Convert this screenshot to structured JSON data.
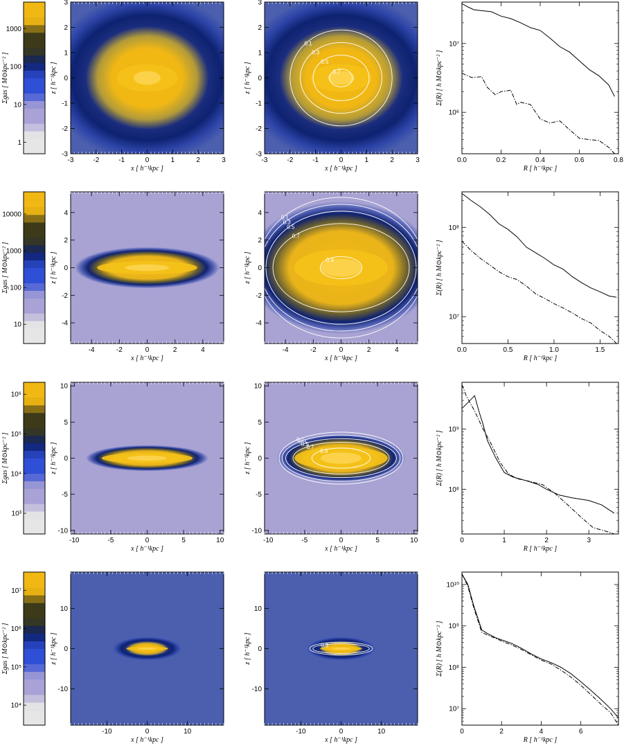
{
  "figure": {
    "colors": {
      "low": "#e6e6e6",
      "lavender": "#a9a2d6",
      "blue": "#2f4fd6",
      "navy": "#0c1f6a",
      "olive": "#3c3a19",
      "gold": "#f1b814",
      "contour": "#ffffff"
    }
  },
  "chart_data": [
    {
      "type": "colorbar",
      "row": 1,
      "ylabel": "Σgas [ M⊙kpc⁻² ]",
      "scale": "log",
      "range": [
        0.5,
        5000
      ],
      "ticks": [
        {
          "v": 1,
          "label": "1"
        },
        {
          "v": 10,
          "label": "10"
        },
        {
          "v": 100,
          "label": "100"
        },
        {
          "v": 1000,
          "label": "1000"
        }
      ]
    },
    {
      "type": "heatmap",
      "row": 1,
      "variant": "map",
      "xlabel": "x [ h⁻¹kpc ]",
      "ylabel": "z [ h⁻¹kpc ]",
      "xlim": [
        -3,
        3
      ],
      "ylim": [
        -3,
        3
      ],
      "xticks": [
        -3,
        -2,
        -1,
        0,
        1,
        2,
        3
      ],
      "yticks": [
        -3,
        -2,
        -1,
        0,
        1,
        2,
        3
      ],
      "disk": {
        "a": 1.5,
        "b": 0.9,
        "halo": 2.4
      },
      "background": "blue"
    },
    {
      "type": "heatmap",
      "row": 1,
      "variant": "contour",
      "xlabel": "x [ h⁻¹kpc ]",
      "ylabel": "z [ h⁻¹kpc ]",
      "xlim": [
        -3,
        3
      ],
      "ylim": [
        -3,
        3
      ],
      "xticks": [
        -3,
        -2,
        -1,
        0,
        1,
        2,
        3
      ],
      "yticks": [
        -3,
        -2,
        -1,
        0,
        1,
        2,
        3
      ],
      "disk": {
        "a": 1.5,
        "b": 0.9,
        "halo": 2.4
      },
      "background": "blue",
      "contours": [
        {
          "level": "0.1",
          "rx": 2.0,
          "rz": 1.9
        },
        {
          "level": "0.3",
          "rx": 1.6,
          "rz": 1.4
        },
        {
          "level": "0.5",
          "rx": 1.1,
          "rz": 0.9
        },
        {
          "level": "0.7",
          "rx": 0.45,
          "rz": 0.35
        }
      ]
    },
    {
      "type": "line",
      "row": 1,
      "xlabel": "R [ h⁻¹kpc ]",
      "ylabel": "Σ(R) [ h M⊙kpc⁻² ]",
      "xlim": [
        0,
        0.8
      ],
      "ylim": [
        250000,
        40000000
      ],
      "yscale": "log",
      "xticks": [
        {
          "v": 0,
          "label": "0.0"
        },
        {
          "v": 0.2,
          "label": "0.2"
        },
        {
          "v": 0.4,
          "label": "0.4"
        },
        {
          "v": 0.6,
          "label": "0.6"
        },
        {
          "v": 0.8,
          "label": "0.8"
        }
      ],
      "yticks": [
        {
          "v": 1000000,
          "label": "10⁶"
        },
        {
          "v": 10000000,
          "label": "10⁷"
        }
      ],
      "series": [
        {
          "style": "solid",
          "x": [
            0,
            0.03,
            0.06,
            0.1,
            0.15,
            0.2,
            0.25,
            0.3,
            0.35,
            0.4,
            0.45,
            0.5,
            0.55,
            0.6,
            0.65,
            0.7,
            0.75,
            0.78
          ],
          "y": [
            38000000,
            34000000,
            31000000,
            30000000,
            29000000,
            25000000,
            23000000,
            20000000,
            17000000,
            15500000,
            12000000,
            9000000,
            7500000,
            5600000,
            4200000,
            3400000,
            2500000,
            1700000
          ]
        },
        {
          "style": "dashdot",
          "x": [
            0,
            0.05,
            0.1,
            0.13,
            0.17,
            0.2,
            0.25,
            0.28,
            0.3,
            0.35,
            0.4,
            0.45,
            0.5,
            0.55,
            0.6,
            0.65,
            0.7,
            0.75,
            0.78
          ],
          "y": [
            3700000,
            3200000,
            3300000,
            2300000,
            1800000,
            2000000,
            2100000,
            1300000,
            1400000,
            1300000,
            800000,
            700000,
            750000,
            560000,
            420000,
            400000,
            390000,
            310000,
            250000
          ]
        }
      ]
    },
    {
      "type": "colorbar",
      "row": 2,
      "ylabel": "Σgas [ M⊙kpc⁻² ]",
      "scale": "log",
      "range": [
        3,
        40000
      ],
      "ticks": [
        {
          "v": 10,
          "label": "10"
        },
        {
          "v": 100,
          "label": "100"
        },
        {
          "v": 1000,
          "label": "1000"
        },
        {
          "v": 10000,
          "label": "10000"
        }
      ]
    },
    {
      "type": "heatmap",
      "row": 2,
      "variant": "map",
      "xlabel": "x [ h⁻¹kpc ]",
      "ylabel": "z [ h⁻¹kpc ]",
      "xlim": [
        -5.5,
        5.5
      ],
      "ylim": [
        -5.5,
        5.5
      ],
      "xticks": [
        -4,
        -2,
        0,
        2,
        4
      ],
      "yticks": [
        -4,
        -2,
        0,
        2,
        4
      ],
      "disk": {
        "a": 4.5,
        "b": 0.8,
        "halo": 0.7
      },
      "background": "lavender"
    },
    {
      "type": "heatmap",
      "row": 2,
      "variant": "contour",
      "xlabel": "x [ h⁻¹kpc ]",
      "ylabel": "z [ h⁻¹kpc ]",
      "xlim": [
        -5.5,
        5.5
      ],
      "ylim": [
        -5.5,
        5.5
      ],
      "xticks": [
        -4,
        -2,
        0,
        2,
        4
      ],
      "yticks": [
        -4,
        -2,
        0,
        2,
        4
      ],
      "disk": {
        "a": 4.2,
        "b": 2.2,
        "halo": 2.6
      },
      "background": "lavender",
      "contours": [
        {
          "level": "0.1",
          "rx": 6.0,
          "rz": 5.1
        },
        {
          "level": "0.3",
          "rx": 5.8,
          "rz": 4.6
        },
        {
          "level": "0.5",
          "rx": 5.4,
          "rz": 4.1
        },
        {
          "level": "0.7",
          "rx": 4.9,
          "rz": 3.2
        },
        {
          "level": "0.9",
          "rx": 1.5,
          "rz": 0.8
        }
      ]
    },
    {
      "type": "line",
      "row": 2,
      "xlabel": "R [ h⁻¹kpc ]",
      "ylabel": "Σ(R) [ h M⊙kpc⁻² ]",
      "xlim": [
        0,
        1.7
      ],
      "ylim": [
        5000000,
        250000000
      ],
      "yscale": "log",
      "xticks": [
        {
          "v": 0,
          "label": "0.0"
        },
        {
          "v": 0.5,
          "label": "0.5"
        },
        {
          "v": 1,
          "label": "1.0"
        },
        {
          "v": 1.5,
          "label": "1.5"
        }
      ],
      "yticks": [
        {
          "v": 10000000,
          "label": "10⁷"
        },
        {
          "v": 100000000,
          "label": "10⁸"
        }
      ],
      "series": [
        {
          "style": "solid",
          "x": [
            0,
            0.1,
            0.2,
            0.3,
            0.4,
            0.5,
            0.6,
            0.7,
            0.8,
            0.9,
            1.0,
            1.1,
            1.2,
            1.3,
            1.4,
            1.5,
            1.6,
            1.68
          ],
          "y": [
            240000000,
            200000000,
            170000000,
            140000000,
            110000000,
            95000000,
            78000000,
            60000000,
            52000000,
            45000000,
            38000000,
            34000000,
            28000000,
            24000000,
            21000000,
            19000000,
            17000000,
            16500000
          ]
        },
        {
          "style": "dashdot",
          "x": [
            0,
            0.1,
            0.2,
            0.3,
            0.4,
            0.5,
            0.6,
            0.7,
            0.8,
            0.9,
            1.0,
            1.1,
            1.2,
            1.3,
            1.4,
            1.5,
            1.6,
            1.68
          ],
          "y": [
            70000000,
            55000000,
            45000000,
            38000000,
            32000000,
            28000000,
            26000000,
            22000000,
            18000000,
            16000000,
            14000000,
            12500000,
            11000000,
            9500000,
            8500000,
            7000000,
            6000000,
            5000000
          ]
        }
      ]
    },
    {
      "type": "colorbar",
      "row": 3,
      "ylabel": "Σgas [ M⊙kpc⁻² ]",
      "scale": "log",
      "range": [
        300,
        2000000
      ],
      "ticks": [
        {
          "v": 1000,
          "label": "10³"
        },
        {
          "v": 10000,
          "label": "10⁴"
        },
        {
          "v": 100000,
          "label": "10⁵"
        },
        {
          "v": 1000000,
          "label": "10⁶"
        }
      ]
    },
    {
      "type": "heatmap",
      "row": 3,
      "variant": "map",
      "xlabel": "x [ h⁻¹kpc ]",
      "ylabel": "z [ h⁻¹kpc ]",
      "xlim": [
        -10.5,
        10.5
      ],
      "ylim": [
        -10.5,
        10.5
      ],
      "xticks": [
        -10,
        -5,
        0,
        5,
        10
      ],
      "yticks": [
        -10,
        -5,
        0,
        5,
        10
      ],
      "disk": {
        "a": 7.8,
        "b": 1.2,
        "halo": 0.6
      },
      "background": "lavender"
    },
    {
      "type": "heatmap",
      "row": 3,
      "variant": "contour",
      "xlabel": "x [ h⁻¹kpc ]",
      "ylabel": "z [ h⁻¹kpc ]",
      "xlim": [
        -10.5,
        10.5
      ],
      "ylim": [
        -10.5,
        10.5
      ],
      "xticks": [
        -10,
        -5,
        0,
        5,
        10
      ],
      "yticks": [
        -10,
        -5,
        0,
        5,
        10
      ],
      "disk": {
        "a": 8.0,
        "b": 2.6,
        "halo": 0.8
      },
      "background": "lavender",
      "contours": [
        {
          "level": "0.1",
          "rx": 8.5,
          "rz": 3.6
        },
        {
          "level": "0.3",
          "rx": 8.1,
          "rz": 3.2
        },
        {
          "level": "0.5",
          "rx": 7.6,
          "rz": 2.7
        },
        {
          "level": "0.7",
          "rx": 6.6,
          "rz": 2.2
        },
        {
          "level": "0.9",
          "rx": 4.0,
          "rz": 1.4
        }
      ]
    },
    {
      "type": "line",
      "row": 3,
      "xlabel": "R [ h⁻¹kpc ]",
      "ylabel": "Σ(R) [ h M⊙kpc⁻² ]",
      "xlim": [
        0,
        3.7
      ],
      "ylim": [
        18000000,
        6000000000
      ],
      "yscale": "log",
      "xticks": [
        {
          "v": 0,
          "label": "0"
        },
        {
          "v": 1,
          "label": "1"
        },
        {
          "v": 2,
          "label": "2"
        },
        {
          "v": 3,
          "label": "3"
        }
      ],
      "yticks": [
        {
          "v": 100000000,
          "label": "10⁸"
        },
        {
          "v": 1000000000,
          "label": "10⁹"
        }
      ],
      "series": [
        {
          "style": "solid",
          "x": [
            0,
            0.15,
            0.3,
            0.4,
            0.5,
            0.6,
            0.8,
            1.0,
            1.2,
            1.5,
            1.8,
            2.0,
            2.3,
            2.6,
            3.0,
            3.3,
            3.6
          ],
          "y": [
            2200000000,
            2800000000,
            3600000000,
            2000000000,
            1200000000,
            650000000,
            330000000,
            190000000,
            160000000,
            140000000,
            120000000,
            100000000,
            80000000,
            72000000,
            65000000,
            55000000,
            40000000
          ]
        },
        {
          "style": "dashdot",
          "x": [
            0,
            0.1,
            0.3,
            0.5,
            0.7,
            0.9,
            1.1,
            1.3,
            1.6,
            1.9,
            2.2,
            2.5,
            2.8,
            3.1,
            3.4,
            3.6
          ],
          "y": [
            5500000000,
            3600000000,
            2000000000,
            1000000000,
            550000000,
            280000000,
            180000000,
            150000000,
            135000000,
            120000000,
            85000000,
            55000000,
            35000000,
            23000000,
            20000000,
            18000000
          ]
        }
      ]
    },
    {
      "type": "colorbar",
      "row": 4,
      "ylabel": "Σgas [ M⊙kpc⁻² ]",
      "scale": "log",
      "range": [
        3000,
        30000000
      ],
      "ticks": [
        {
          "v": 10000,
          "label": "10⁴"
        },
        {
          "v": 100000,
          "label": "10⁵"
        },
        {
          "v": 1000000,
          "label": "10⁶"
        },
        {
          "v": 10000000,
          "label": "10⁷"
        }
      ]
    },
    {
      "type": "heatmap",
      "row": 4,
      "variant": "map",
      "xlabel": "x [ h⁻¹kpc ]",
      "ylabel": "z [ h⁻¹kpc ]",
      "xlim": [
        -19,
        19
      ],
      "ylim": [
        -19,
        19
      ],
      "xticks": [
        -10,
        0,
        10
      ],
      "yticks": [
        -10,
        0,
        10
      ],
      "disk": {
        "a": 6.5,
        "b": 0.9,
        "halo": 2.0
      },
      "background": "blue"
    },
    {
      "type": "heatmap",
      "row": 4,
      "variant": "contour",
      "xlabel": "x [ h⁻¹kpc ]",
      "ylabel": "z [ h⁻¹kpc ]",
      "xlim": [
        -19,
        19
      ],
      "ylim": [
        -19,
        19
      ],
      "xticks": [
        -10,
        0,
        10
      ],
      "yticks": [
        -10,
        0,
        10
      ],
      "disk": {
        "a": 6.5,
        "b": 0.9,
        "halo": 2.0
      },
      "background": "blue",
      "contours": [
        {
          "level": "",
          "rx": 7.8,
          "rz": 1.6
        },
        {
          "level": "0.3",
          "rx": 7.0,
          "rz": 1.2
        }
      ]
    },
    {
      "type": "line",
      "row": 4,
      "xlabel": "R [ h⁻¹kpc ]",
      "ylabel": "Σ(R) [ h M⊙kpc⁻² ]",
      "xlim": [
        0,
        7.9
      ],
      "ylim": [
        4000000,
        20000000000
      ],
      "yscale": "log",
      "xticks": [
        {
          "v": 0,
          "label": "0"
        },
        {
          "v": 2,
          "label": "2"
        },
        {
          "v": 4,
          "label": "4"
        },
        {
          "v": 6,
          "label": "6"
        }
      ],
      "yticks": [
        {
          "v": 10000000,
          "label": "10⁷"
        },
        {
          "v": 100000000,
          "label": "10⁸"
        },
        {
          "v": 1000000000,
          "label": "10⁹"
        },
        {
          "v": 10000000000,
          "label": "10¹⁰"
        }
      ],
      "series": [
        {
          "style": "solid",
          "x": [
            0,
            0.3,
            0.6,
            1.0,
            1.3,
            1.7,
            2.0,
            2.5,
            3.0,
            3.5,
            4.0,
            4.5,
            5.0,
            5.5,
            6.0,
            6.5,
            7.0,
            7.5,
            7.9
          ],
          "y": [
            18000000000,
            10000000000,
            3000000000,
            800000000,
            650000000,
            520000000,
            460000000,
            380000000,
            290000000,
            210000000,
            160000000,
            130000000,
            100000000,
            70000000,
            45000000,
            28000000,
            17000000,
            10000000,
            6000000
          ]
        },
        {
          "style": "dashdot",
          "x": [
            0,
            0.3,
            0.6,
            1.0,
            1.3,
            1.7,
            2.0,
            2.5,
            3.0,
            3.5,
            4.0,
            4.5,
            5.0,
            5.5,
            6.0,
            6.5,
            7.0,
            7.5,
            7.9
          ],
          "y": [
            18000000000,
            9000000000,
            2700000000,
            700000000,
            600000000,
            500000000,
            430000000,
            350000000,
            270000000,
            200000000,
            150000000,
            120000000,
            85000000,
            58000000,
            37000000,
            22000000,
            13000000,
            8000000,
            4000000
          ]
        }
      ]
    }
  ]
}
